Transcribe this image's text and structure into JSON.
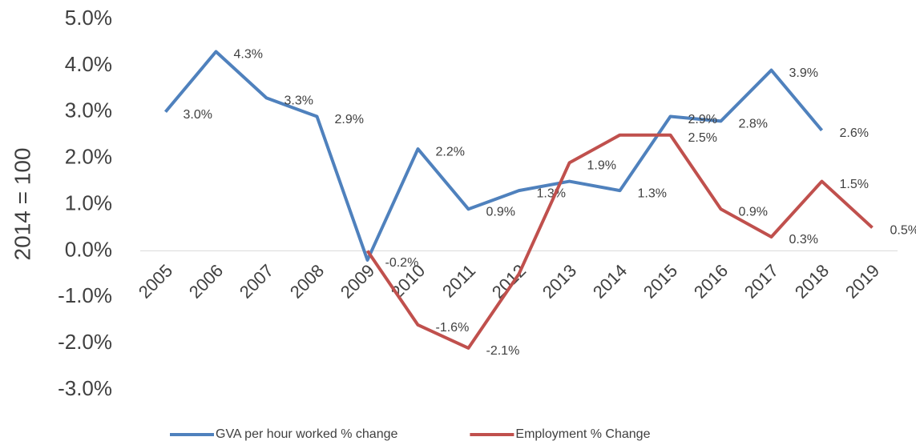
{
  "chart_data": {
    "type": "line",
    "ylabel": "2014 = 100",
    "categories": [
      "2005",
      "2006",
      "2007",
      "2008",
      "2009",
      "2010",
      "2011",
      "2012",
      "2013",
      "2014",
      "2015",
      "2016",
      "2017",
      "2018",
      "2019"
    ],
    "series": [
      {
        "name": "GVA per hour worked % change",
        "color": "#4f81bd",
        "values": [
          3.0,
          4.3,
          3.3,
          2.9,
          -0.2,
          2.2,
          0.9,
          1.3,
          1.5,
          1.3,
          2.9,
          2.8,
          3.9,
          2.6,
          null
        ],
        "value_labels": [
          "3.0%",
          "4.3%",
          "3.3%",
          "2.9%",
          "-0.2%",
          "2.2%",
          "0.9%",
          "1.3%",
          null,
          "1.3%",
          "2.9%",
          "2.8%",
          "3.9%",
          "2.6%",
          null
        ]
      },
      {
        "name": "Employment % Change",
        "color": "#c0504d",
        "values": [
          null,
          null,
          null,
          null,
          0.0,
          -1.6,
          -2.1,
          -0.5,
          1.9,
          2.5,
          2.5,
          0.9,
          0.3,
          1.5,
          0.5
        ],
        "value_labels": [
          null,
          null,
          null,
          null,
          null,
          "-1.6%",
          "-2.1%",
          null,
          "1.9%",
          null,
          "2.5%",
          "0.9%",
          "0.3%",
          "1.5%",
          "0.5%"
        ]
      }
    ],
    "ylim": [
      -3,
      5
    ],
    "yticks": [
      {
        "value": -3,
        "label": "-3.0%"
      },
      {
        "value": -2,
        "label": "-2.0%"
      },
      {
        "value": -1,
        "label": "-1.0%"
      },
      {
        "value": 0,
        "label": "0.0%"
      },
      {
        "value": 1,
        "label": "1.0%"
      },
      {
        "value": 2,
        "label": "2.0%"
      },
      {
        "value": 3,
        "label": "3.0%"
      },
      {
        "value": 4,
        "label": "4.0%"
      },
      {
        "value": 5,
        "label": "5.0%"
      }
    ],
    "legend": "bottom"
  }
}
